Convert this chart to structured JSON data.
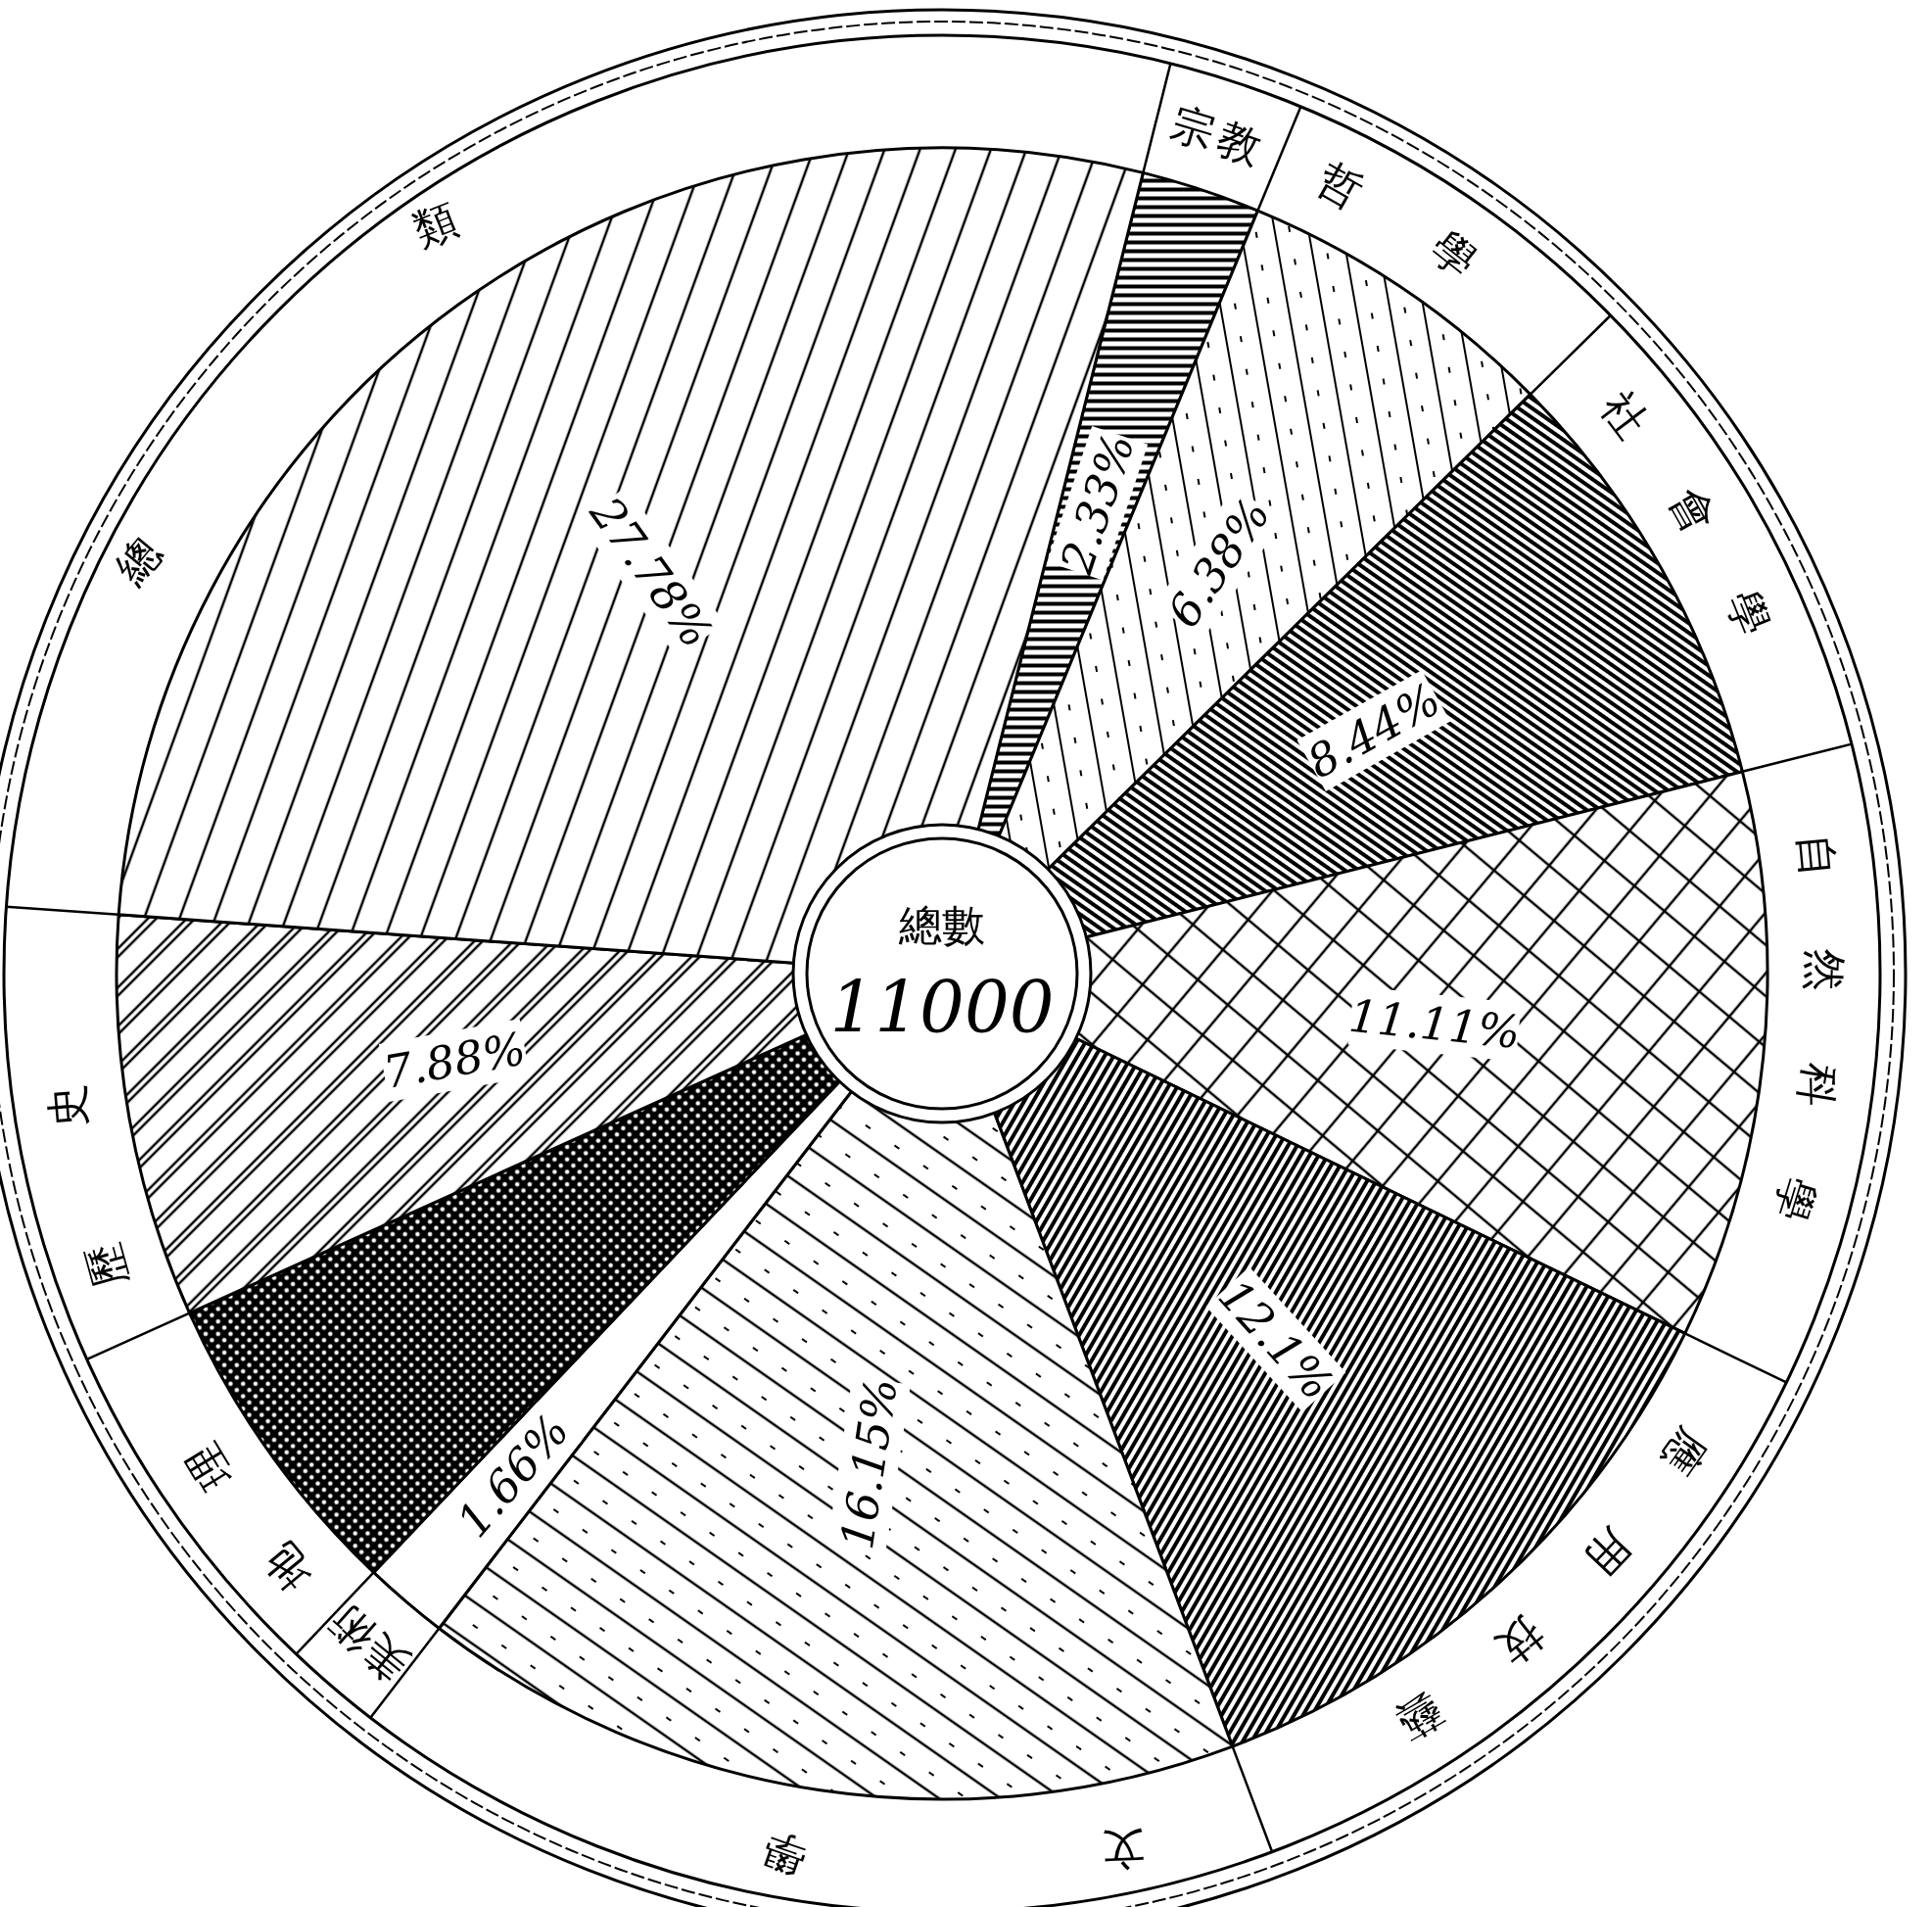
{
  "chart_data": {
    "type": "pie",
    "categories": [
      "宗教",
      "哲學",
      "社會學",
      "自然科學",
      "應用技藝",
      "文學",
      "美術",
      "地理",
      "歷史",
      "總類"
    ],
    "values": [
      2.33,
      6.38,
      8.44,
      11.11,
      12.1,
      16.15,
      1.66,
      6.17,
      7.88,
      27.78
    ],
    "colors": [
      "#000000",
      "#000000",
      "#000000",
      "#000000",
      "#000000",
      "#000000",
      "#000000",
      "#000000",
      "#000000",
      "#000000"
    ],
    "value_labels": [
      "2.33%",
      "6.38%",
      "8.44%",
      "11.11%",
      "12.1%",
      "16.15%",
      "1.66%",
      null,
      "7.88%",
      "27.78%"
    ],
    "annotations": [
      "總數",
      "11000"
    ]
  }
}
